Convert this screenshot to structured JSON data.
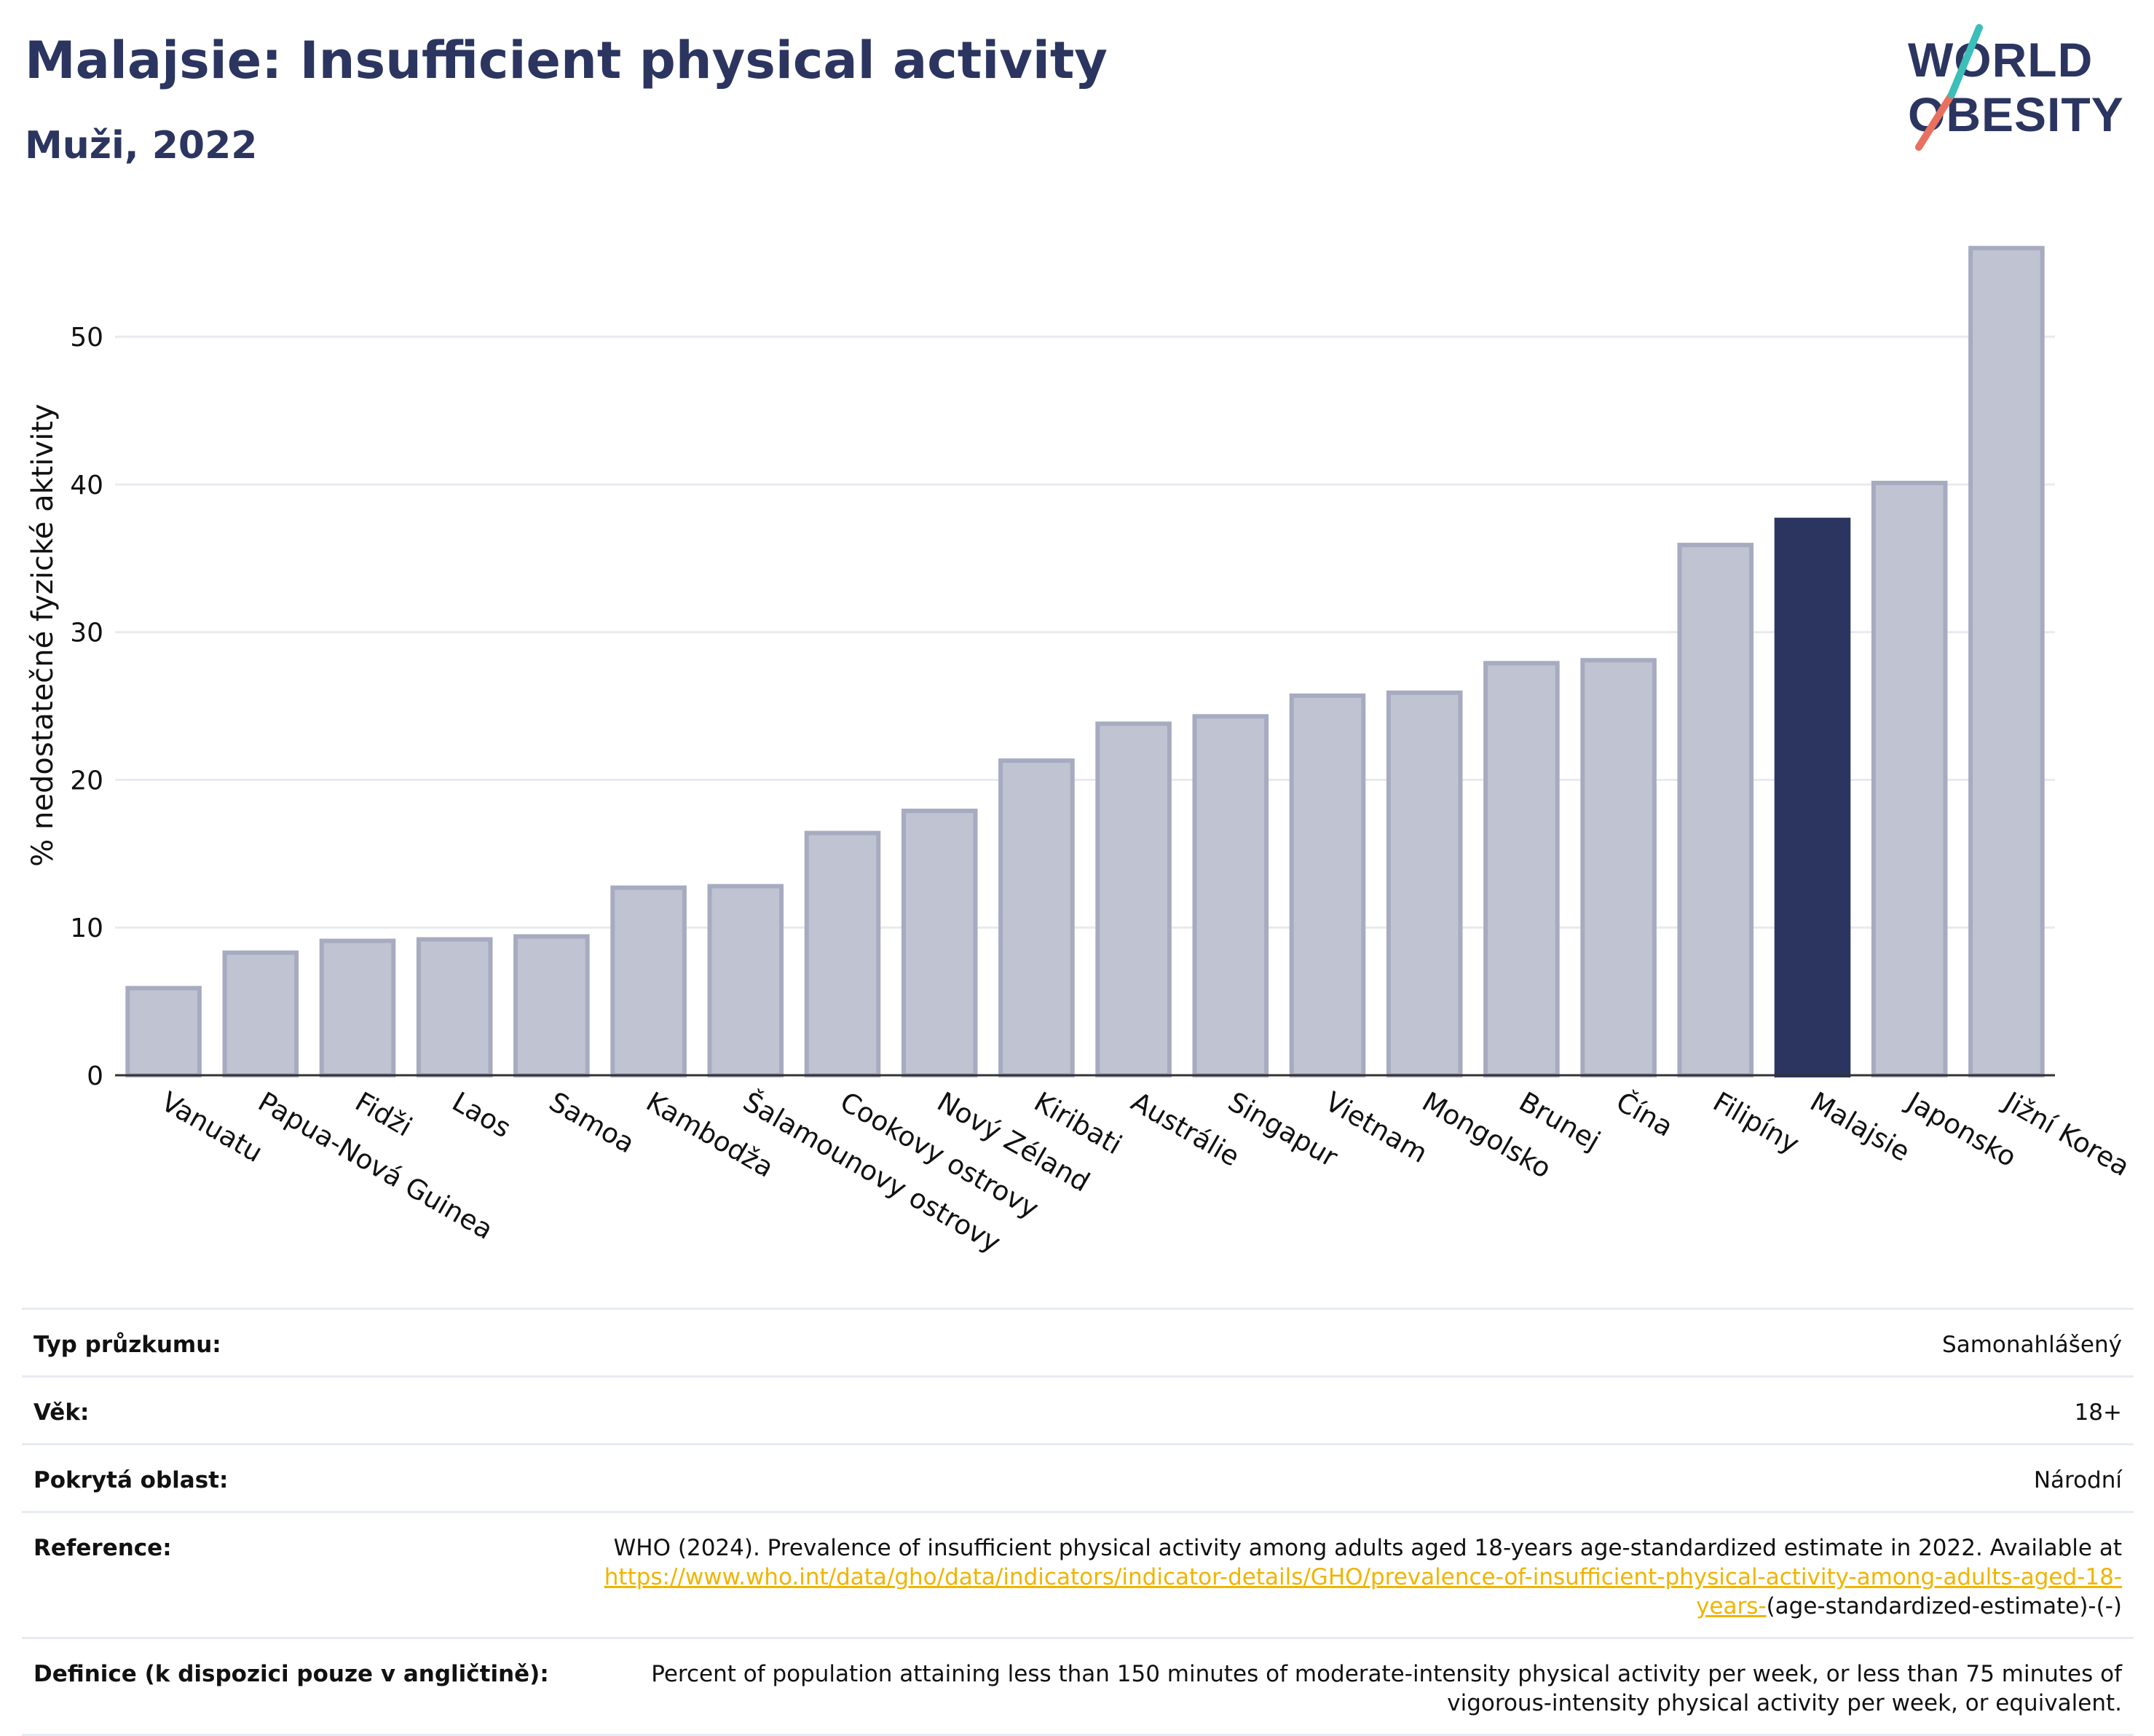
{
  "header": {
    "title": "Malajsie: Insufficient physical activity",
    "subtitle": "Muži, 2022"
  },
  "logo": {
    "line1": "WORLD",
    "line2": "OBESITY",
    "text_color": "#2b3560",
    "slash_colors": [
      "#e8705f",
      "#3bbfb8"
    ]
  },
  "colors": {
    "bar": "#c0c3d1",
    "bar_border": "#a7abc0",
    "highlight": "#2b3560",
    "grid": "#e8eaf0",
    "axis": "#333333"
  },
  "chart_data": {
    "type": "bar",
    "ylabel": "% nedostatečné fyzické aktivity",
    "ylim": [
      0,
      58
    ],
    "yticks": [
      0,
      10,
      20,
      30,
      40,
      50
    ],
    "grid": true,
    "categories": [
      "Vanuatu",
      "Papua-Nová Guinea",
      "Fidži",
      "Laos",
      "Samoa",
      "Kambodža",
      "Šalamounovy ostrovy",
      "Cookovy ostrovy",
      "Nový Zéland",
      "Kiribati",
      "Austrálie",
      "Singapur",
      "Vietnam",
      "Mongolsko",
      "Brunej",
      "Čína",
      "Filipíny",
      "Malajsie",
      "Japonsko",
      "Jižní Korea"
    ],
    "values": [
      5.9,
      8.3,
      9.1,
      9.2,
      9.4,
      12.7,
      12.8,
      16.4,
      17.9,
      21.3,
      23.8,
      24.3,
      25.7,
      25.9,
      27.9,
      28.1,
      35.9,
      37.6,
      40.1,
      56.0
    ],
    "highlight": "Malajsie"
  },
  "meta": [
    {
      "label": "Typ průzkumu:",
      "value": "Samonahlášený"
    },
    {
      "label": "Věk:",
      "value": "18+"
    },
    {
      "label": "Pokrytá oblast:",
      "value": "Národní"
    }
  ],
  "reference": {
    "label": "Reference:",
    "text": "WHO (2024). Prevalence of insufficient physical activity among adults aged 18-years age-standardized estimate in 2022. Available at ",
    "link": "https://www.who.int/data/gho/data/indicators/indicator-details/GHO/prevalence-of-insufficient-physical-activity-among-adults-aged-18-years-",
    "suffix": "(age-standardized-estimate)-(-)"
  },
  "definition": {
    "label": "Definice (k dispozici pouze v angličtině):",
    "text": "Percent of population attaining less than 150 minutes of moderate-intensity physical activity per week, or less than 75 minutes of vigorous-intensity physical activity per week, or equivalent."
  }
}
